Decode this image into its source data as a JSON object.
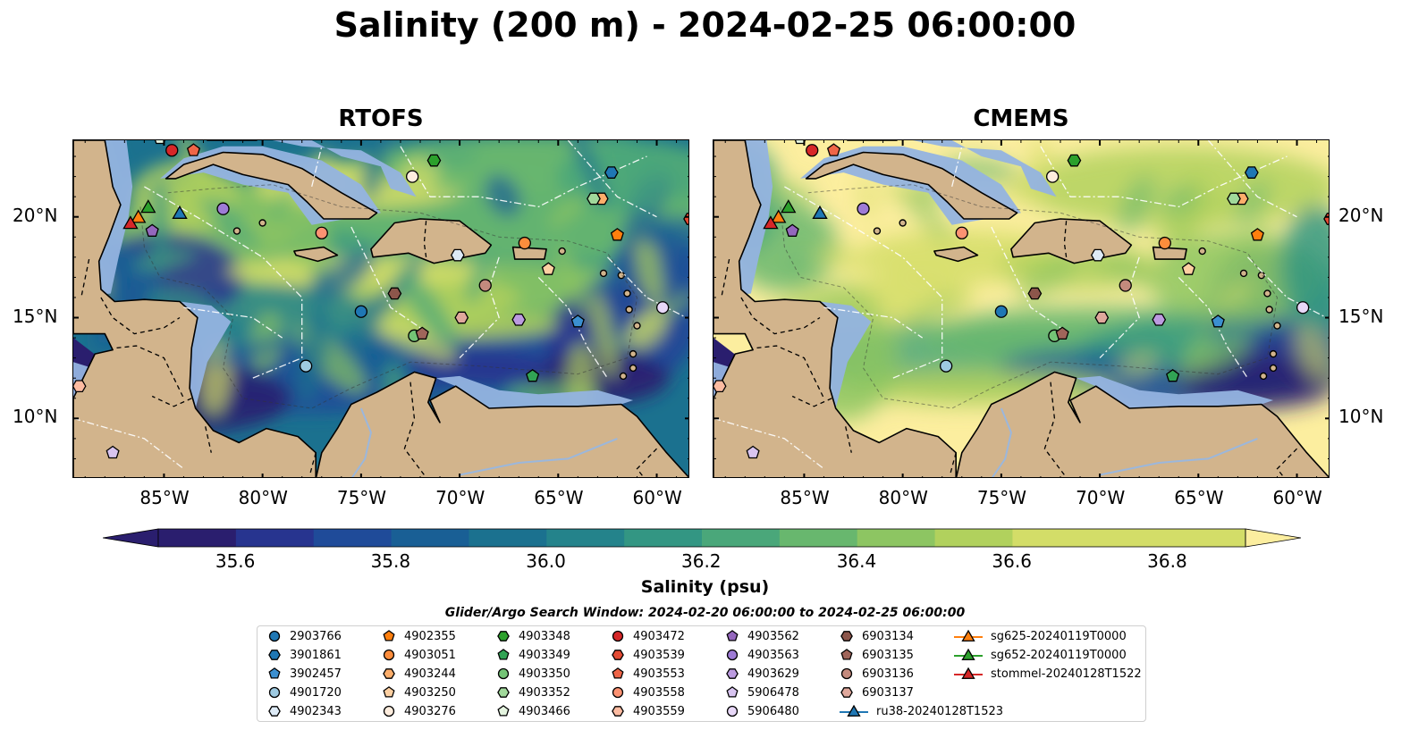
{
  "title": "Salinity (200 m) - 2024-02-25 06:00:00",
  "panels": [
    {
      "title": "RTOFS"
    },
    {
      "title": "CMEMS"
    }
  ],
  "axes": {
    "lon_ticks": [
      "85°W",
      "80°W",
      "75°W",
      "70°W",
      "65°W",
      "60°W"
    ],
    "lat_ticks": [
      "20°N",
      "15°N",
      "10°N"
    ],
    "lon_range": [
      -89.6,
      -58.3
    ],
    "lat_range": [
      7.0,
      23.8
    ]
  },
  "colorbar": {
    "label": "Salinity (psu)",
    "min": 35.5,
    "max": 36.9,
    "ticks": [
      "35.6",
      "35.8",
      "36.0",
      "36.2",
      "36.4",
      "36.6",
      "36.8"
    ],
    "colors": [
      "#2a1e6e",
      "#27348f",
      "#1f4b99",
      "#195f95",
      "#1b718f",
      "#24838b",
      "#339683",
      "#4aa77a",
      "#68b76e",
      "#8dc562",
      "#b1d15d",
      "#d3dd68",
      "#fcee9f"
    ]
  },
  "search_window": "Glider/Argo Search Window: 2024-02-20 06:00:00 to 2024-02-25 06:00:00",
  "legend": [
    {
      "label": "2903766",
      "marker": "circle",
      "color": "#1f77b4"
    },
    {
      "label": "3901861",
      "marker": "hexagon",
      "color": "#1f77b4"
    },
    {
      "label": "3902457",
      "marker": "pentagon",
      "color": "#3b8fd0"
    },
    {
      "label": "4901720",
      "marker": "circle",
      "color": "#9ecae1"
    },
    {
      "label": "4902343",
      "marker": "hexagon",
      "color": "#deebf7"
    },
    {
      "label": "4902355",
      "marker": "pentagon",
      "color": "#ff7f0e"
    },
    {
      "label": "4903051",
      "marker": "circle",
      "color": "#fd8d3c"
    },
    {
      "label": "4903244",
      "marker": "hexagon",
      "color": "#fdae6b"
    },
    {
      "label": "4903250",
      "marker": "pentagon",
      "color": "#fdd0a2"
    },
    {
      "label": "4903276",
      "marker": "circle",
      "color": "#feedde"
    },
    {
      "label": "4903348",
      "marker": "hexagon",
      "color": "#2ca02c"
    },
    {
      "label": "4903349",
      "marker": "pentagon",
      "color": "#31a354"
    },
    {
      "label": "4903350",
      "marker": "circle",
      "color": "#74c476"
    },
    {
      "label": "4903352",
      "marker": "hexagon",
      "color": "#a1d99b"
    },
    {
      "label": "4903466",
      "marker": "pentagon",
      "color": "#e5f5e0"
    },
    {
      "label": "4903472",
      "marker": "circle",
      "color": "#d62728"
    },
    {
      "label": "4903539",
      "marker": "hexagon",
      "color": "#e34a33"
    },
    {
      "label": "4903553",
      "marker": "pentagon",
      "color": "#ef6548"
    },
    {
      "label": "4903558",
      "marker": "circle",
      "color": "#fc9272"
    },
    {
      "label": "4903559",
      "marker": "hexagon",
      "color": "#fcbba1"
    },
    {
      "label": "4903562",
      "marker": "pentagon",
      "color": "#9467bd"
    },
    {
      "label": "4903563",
      "marker": "circle",
      "color": "#9e7bd6"
    },
    {
      "label": "4903629",
      "marker": "hexagon",
      "color": "#bc9be0"
    },
    {
      "label": "5906478",
      "marker": "pentagon",
      "color": "#d8c4f0"
    },
    {
      "label": "5906480",
      "marker": "circle",
      "color": "#e8d8f8"
    },
    {
      "label": "6903134",
      "marker": "hexagon",
      "color": "#8c564b"
    },
    {
      "label": "6903135",
      "marker": "pentagon",
      "color": "#a0655a"
    },
    {
      "label": "6903136",
      "marker": "circle",
      "color": "#c48a7d"
    },
    {
      "label": "6903137",
      "marker": "hexagon",
      "color": "#e0a89c"
    },
    {
      "label": "ru38-20240128T1523",
      "marker": "triangle",
      "color": "#1f77b4"
    },
    {
      "label": "sg625-20240119T0000",
      "marker": "triangle",
      "color": "#ff7f0e"
    },
    {
      "label": "sg652-20240119T0000",
      "marker": "triangle",
      "color": "#2ca02c"
    },
    {
      "label": "stommel-20240128T1522",
      "marker": "triangle",
      "color": "#d62728"
    }
  ],
  "observations": [
    {
      "id": "2903766",
      "lon": -75.0,
      "lat": 15.3
    },
    {
      "id": "3901861",
      "lon": -62.3,
      "lat": 22.2
    },
    {
      "id": "3902457",
      "lon": -64.0,
      "lat": 14.8
    },
    {
      "id": "4901720",
      "lon": -77.8,
      "lat": 12.6
    },
    {
      "id": "4902343",
      "lon": -70.1,
      "lat": 18.1
    },
    {
      "id": "4902355",
      "lon": -62.0,
      "lat": 19.1
    },
    {
      "id": "4903051",
      "lon": -66.7,
      "lat": 18.7
    },
    {
      "id": "4903244",
      "lon": -62.8,
      "lat": 20.9
    },
    {
      "id": "4903250",
      "lon": -65.5,
      "lat": 17.4
    },
    {
      "id": "4903276",
      "lon": -72.4,
      "lat": 22.0
    },
    {
      "id": "4903348",
      "lon": -71.3,
      "lat": 22.8
    },
    {
      "id": "4903349",
      "lon": -66.3,
      "lat": 12.1
    },
    {
      "id": "4903350",
      "lon": -72.3,
      "lat": 14.1
    },
    {
      "id": "4903352",
      "lon": -63.2,
      "lat": 20.9
    },
    {
      "id": "4903466",
      "lon": -85.2,
      "lat": 23.9
    },
    {
      "id": "4903472",
      "lon": -84.6,
      "lat": 23.3
    },
    {
      "id": "4903539",
      "lon": -58.3,
      "lat": 19.9
    },
    {
      "id": "4903553",
      "lon": -83.5,
      "lat": 23.3
    },
    {
      "id": "4903558",
      "lon": -77.0,
      "lat": 19.2
    },
    {
      "id": "4903559",
      "lon": -89.3,
      "lat": 11.6
    },
    {
      "id": "4903562",
      "lon": -85.6,
      "lat": 19.3
    },
    {
      "id": "4903563",
      "lon": -82.0,
      "lat": 20.4
    },
    {
      "id": "4903629",
      "lon": -67.0,
      "lat": 14.9
    },
    {
      "id": "5906478",
      "lon": -87.6,
      "lat": 8.3
    },
    {
      "id": "5906480",
      "lon": -59.7,
      "lat": 15.5
    },
    {
      "id": "6903134",
      "lon": -73.3,
      "lat": 16.2
    },
    {
      "id": "6903135",
      "lon": -71.9,
      "lat": 14.2
    },
    {
      "id": "6903136",
      "lon": -68.7,
      "lat": 16.6
    },
    {
      "id": "6903137",
      "lon": -69.9,
      "lat": 15.0
    },
    {
      "id": "ru38-20240128T1523",
      "lon": -84.2,
      "lat": 20.2
    },
    {
      "id": "sg625-20240119T0000",
      "lon": -86.3,
      "lat": 20.0
    },
    {
      "id": "sg652-20240119T0000",
      "lon": -85.8,
      "lat": 20.5
    },
    {
      "id": "stommel-20240128T1522",
      "lon": -86.7,
      "lat": 19.7
    }
  ]
}
